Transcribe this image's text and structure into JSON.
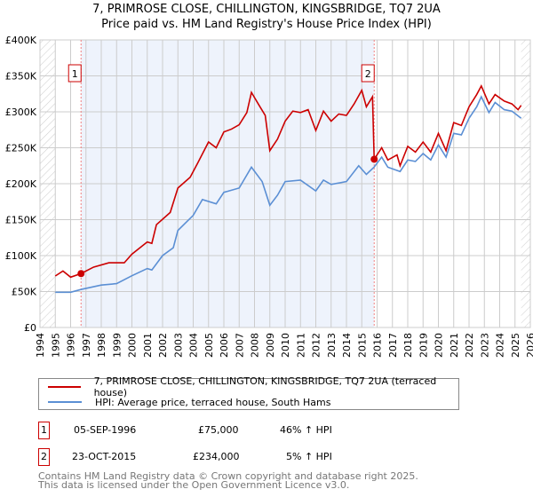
{
  "title_line1": "7, PRIMROSE CLOSE, CHILLINGTON, KINGSBRIDGE, TQ7 2UA",
  "title_line2": "Price paid vs. HM Land Registry's House Price Index (HPI)",
  "chart_data": {
    "type": "line",
    "xlim": [
      1994,
      2026
    ],
    "ylim": [
      0,
      400000
    ],
    "x_ticks": [
      "1994",
      "1995",
      "1996",
      "1997",
      "1998",
      "1999",
      "2000",
      "2001",
      "2002",
      "2003",
      "2004",
      "2005",
      "2006",
      "2007",
      "2008",
      "2009",
      "2010",
      "2011",
      "2012",
      "2013",
      "2014",
      "2015",
      "2016",
      "2017",
      "2018",
      "2019",
      "2020",
      "2021",
      "2022",
      "2023",
      "2024",
      "2025",
      "2026"
    ],
    "y_ticks": [
      {
        "v": 0,
        "label": "£0"
      },
      {
        "v": 50000,
        "label": "£50K"
      },
      {
        "v": 100000,
        "label": "£100K"
      },
      {
        "v": 150000,
        "label": "£150K"
      },
      {
        "v": 200000,
        "label": "£200K"
      },
      {
        "v": 250000,
        "label": "£250K"
      },
      {
        "v": 300000,
        "label": "£300K"
      },
      {
        "v": 350000,
        "label": "£350K"
      },
      {
        "v": 400000,
        "label": "£400K"
      }
    ],
    "grid": true,
    "series": [
      {
        "name": "7, PRIMROSE CLOSE, CHILLINGTON, KINGSBRIDGE, TQ7 2UA (terraced house)",
        "color": "#cc0000",
        "points": [
          [
            1995.0,
            71600
          ],
          [
            1995.5,
            78600
          ],
          [
            1996.0,
            70000
          ],
          [
            1996.68,
            75000
          ],
          [
            1997.5,
            84000
          ],
          [
            1998.5,
            90000
          ],
          [
            1999.5,
            90000
          ],
          [
            2000.0,
            102000
          ],
          [
            2001.0,
            119000
          ],
          [
            2001.3,
            117000
          ],
          [
            2001.6,
            143000
          ],
          [
            2002.5,
            160000
          ],
          [
            2003.0,
            194000
          ],
          [
            2003.8,
            209000
          ],
          [
            2004.3,
            229000
          ],
          [
            2005.0,
            258000
          ],
          [
            2005.5,
            250000
          ],
          [
            2006.0,
            272000
          ],
          [
            2006.5,
            276000
          ],
          [
            2007.0,
            282000
          ],
          [
            2007.5,
            299000
          ],
          [
            2007.8,
            327000
          ],
          [
            2008.3,
            309000
          ],
          [
            2008.7,
            295000
          ],
          [
            2009.0,
            246000
          ],
          [
            2009.5,
            262000
          ],
          [
            2010.0,
            287000
          ],
          [
            2010.5,
            301000
          ],
          [
            2011.0,
            299000
          ],
          [
            2011.5,
            303000
          ],
          [
            2012.0,
            274000
          ],
          [
            2012.5,
            301000
          ],
          [
            2013.0,
            287000
          ],
          [
            2013.5,
            297000
          ],
          [
            2014.0,
            295000
          ],
          [
            2014.5,
            311000
          ],
          [
            2015.0,
            330000
          ],
          [
            2015.3,
            307000
          ],
          [
            2015.7,
            321000
          ],
          [
            2015.81,
            234000
          ],
          [
            2016.3,
            250000
          ],
          [
            2016.7,
            233000
          ],
          [
            2017.3,
            240000
          ],
          [
            2017.5,
            225000
          ],
          [
            2018.0,
            252000
          ],
          [
            2018.5,
            244000
          ],
          [
            2019.0,
            258000
          ],
          [
            2019.5,
            244000
          ],
          [
            2020.0,
            270000
          ],
          [
            2020.5,
            246000
          ],
          [
            2021.0,
            285000
          ],
          [
            2021.5,
            281000
          ],
          [
            2022.0,
            307000
          ],
          [
            2022.5,
            324000
          ],
          [
            2022.8,
            336000
          ],
          [
            2023.3,
            311000
          ],
          [
            2023.7,
            324000
          ],
          [
            2024.3,
            315000
          ],
          [
            2024.8,
            311000
          ],
          [
            2025.2,
            303000
          ],
          [
            2025.4,
            309000
          ]
        ]
      },
      {
        "name": "HPI: Average price, terraced house, South Hams",
        "color": "#5b8fd4",
        "points": [
          [
            1995.0,
            49000
          ],
          [
            1996.0,
            49000
          ],
          [
            1996.7,
            53000
          ],
          [
            1998.0,
            59000
          ],
          [
            1999.0,
            61000
          ],
          [
            2000.0,
            72000
          ],
          [
            2001.0,
            82000
          ],
          [
            2001.3,
            80000
          ],
          [
            2002.0,
            100000
          ],
          [
            2002.7,
            111000
          ],
          [
            2003.0,
            135000
          ],
          [
            2004.0,
            156000
          ],
          [
            2004.6,
            178000
          ],
          [
            2005.5,
            172000
          ],
          [
            2006.0,
            188000
          ],
          [
            2007.0,
            194000
          ],
          [
            2007.8,
            223000
          ],
          [
            2008.5,
            203000
          ],
          [
            2009.0,
            170000
          ],
          [
            2009.5,
            184000
          ],
          [
            2010.0,
            203000
          ],
          [
            2011.0,
            205000
          ],
          [
            2012.0,
            190000
          ],
          [
            2012.5,
            205000
          ],
          [
            2013.0,
            199000
          ],
          [
            2014.0,
            203000
          ],
          [
            2014.8,
            225000
          ],
          [
            2015.3,
            213000
          ],
          [
            2015.8,
            223000
          ],
          [
            2016.3,
            237000
          ],
          [
            2016.7,
            223000
          ],
          [
            2017.5,
            217000
          ],
          [
            2018.0,
            233000
          ],
          [
            2018.5,
            231000
          ],
          [
            2019.0,
            242000
          ],
          [
            2019.5,
            233000
          ],
          [
            2020.0,
            254000
          ],
          [
            2020.5,
            237000
          ],
          [
            2021.0,
            270000
          ],
          [
            2021.5,
            268000
          ],
          [
            2022.0,
            291000
          ],
          [
            2022.5,
            307000
          ],
          [
            2022.8,
            321000
          ],
          [
            2023.3,
            299000
          ],
          [
            2023.7,
            313000
          ],
          [
            2024.3,
            303000
          ],
          [
            2024.8,
            301000
          ],
          [
            2025.4,
            291000
          ]
        ]
      }
    ],
    "sales": [
      {
        "label": "1",
        "x": 1996.68,
        "y": 75000
      },
      {
        "label": "2",
        "x": 2015.81,
        "y": 234000
      }
    ],
    "hatched_before": 1995.0,
    "hatched_after": 2025.4
  },
  "legend": {
    "red": "7, PRIMROSE CLOSE, CHILLINGTON, KINGSBRIDGE, TQ7 2UA (terraced house)",
    "blue": "HPI: Average price, terraced house, South Hams"
  },
  "transactions": [
    {
      "num": "1",
      "date": "05-SEP-1996",
      "price": "£75,000",
      "hpi": "46% ↑ HPI"
    },
    {
      "num": "2",
      "date": "23-OCT-2015",
      "price": "£234,000",
      "hpi": "5% ↑ HPI"
    }
  ],
  "footer1": "Contains HM Land Registry data © Crown copyright and database right 2025.",
  "footer2": "This data is licensed under the Open Government Licence v3.0."
}
